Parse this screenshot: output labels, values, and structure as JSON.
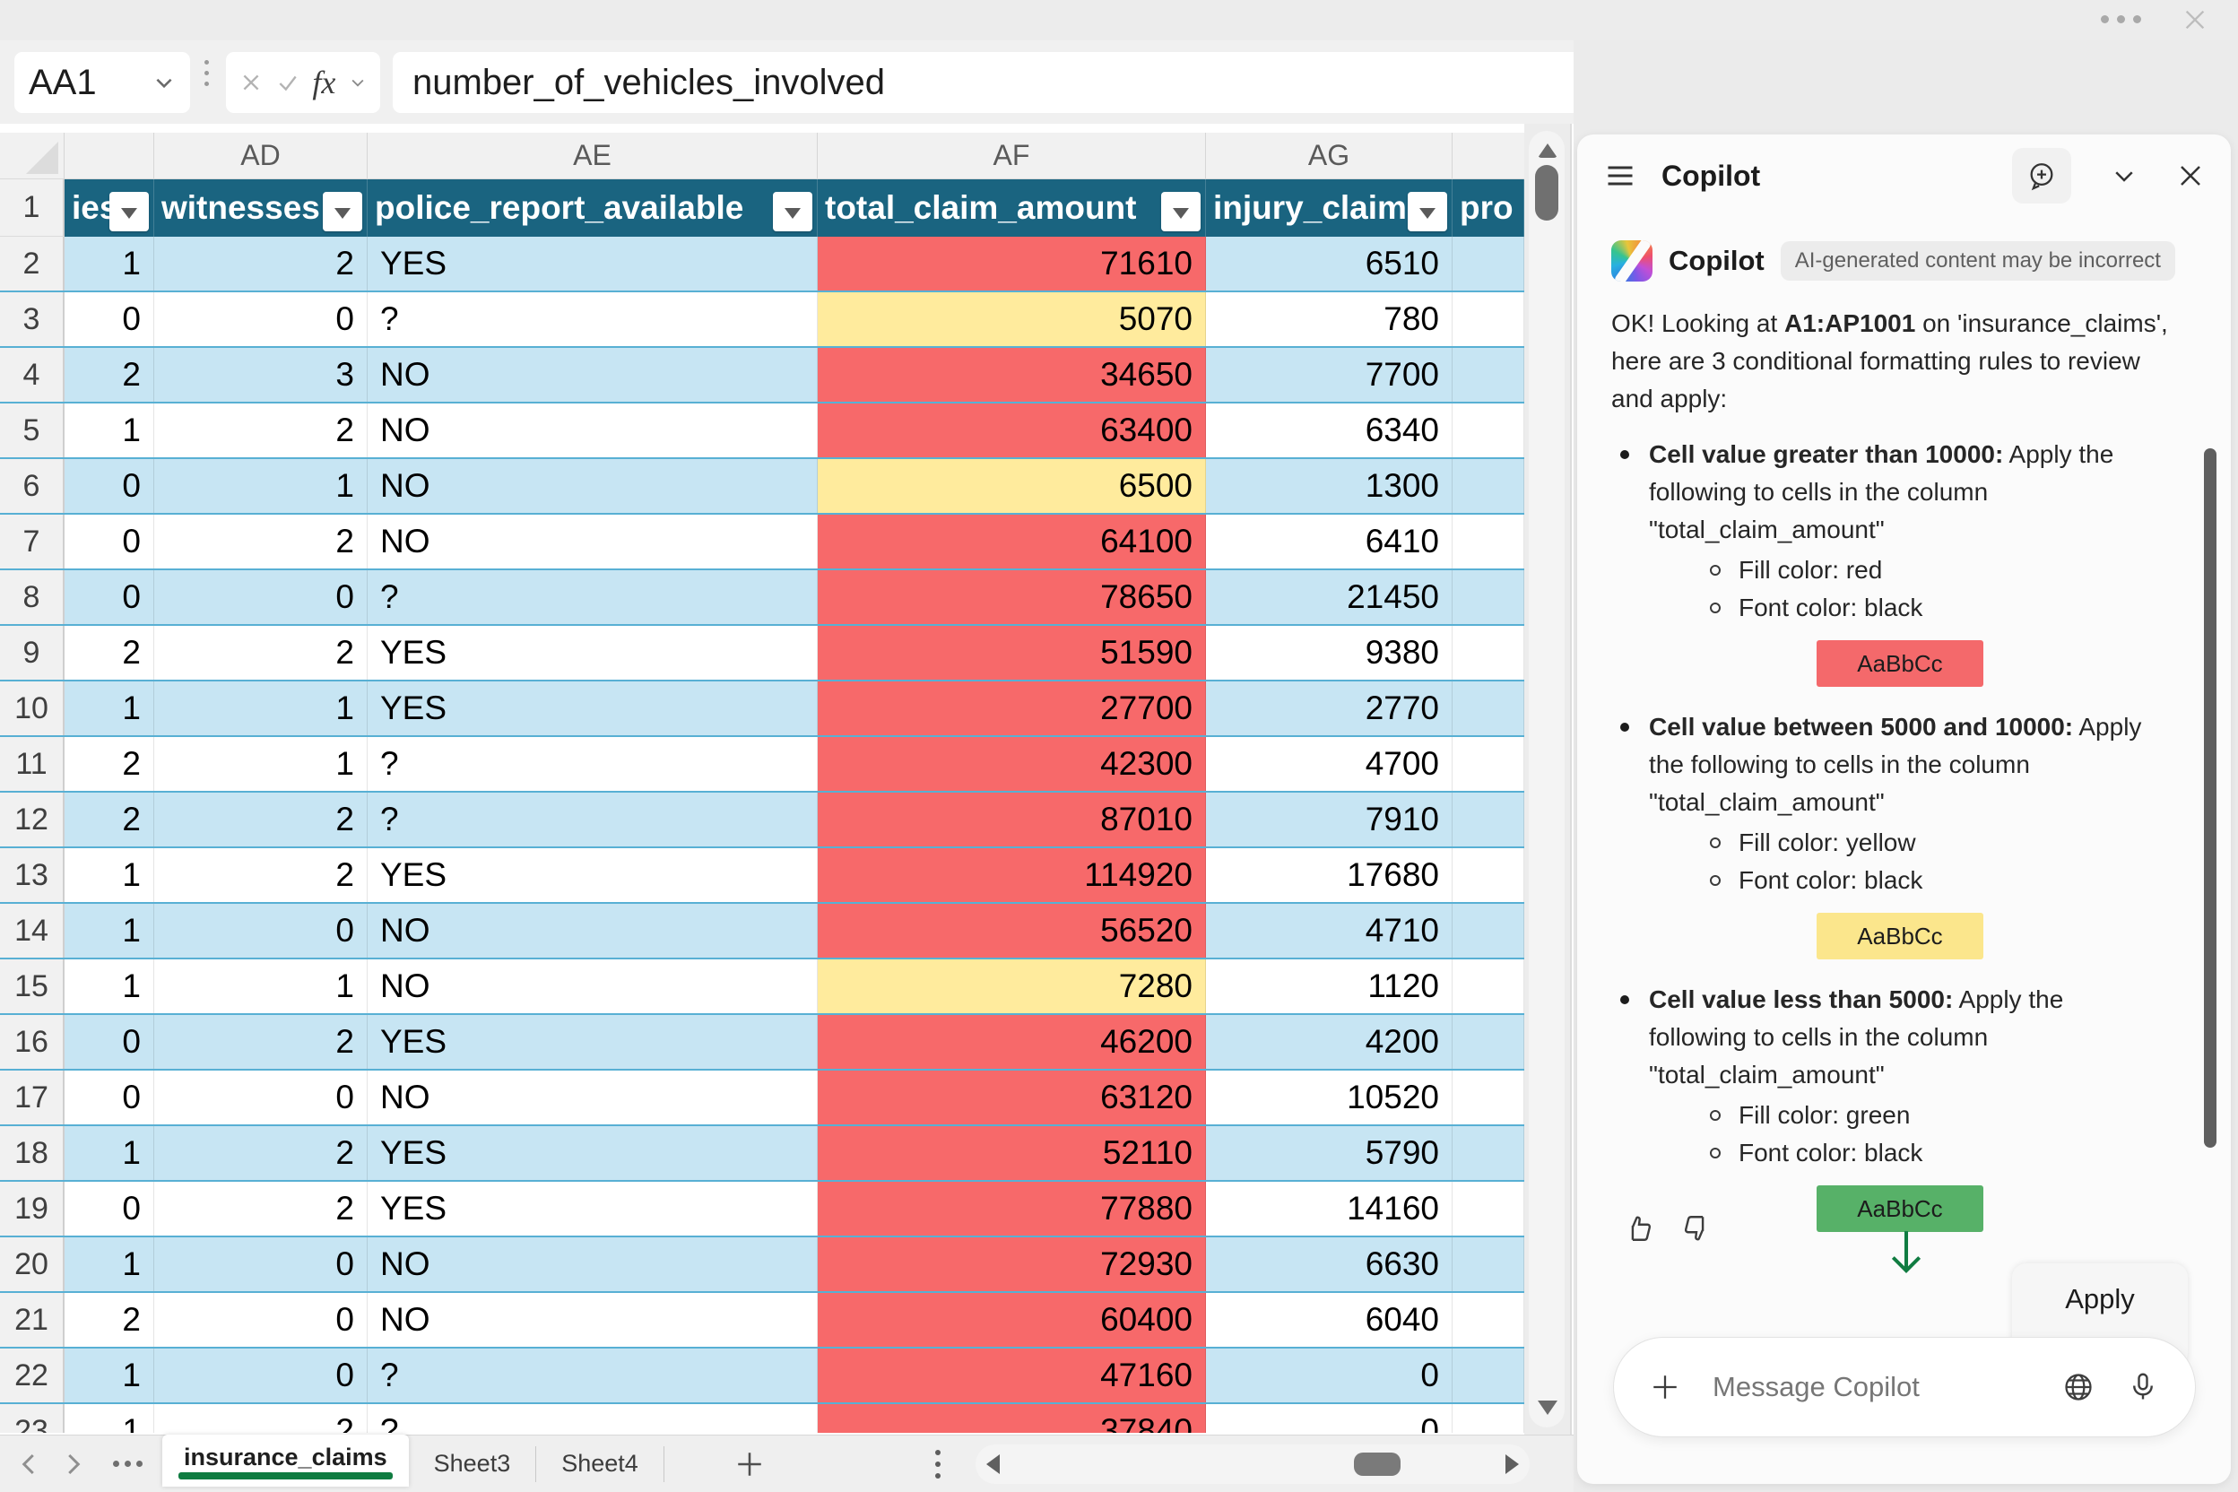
{
  "colors": {
    "header_teal": "#1a6480",
    "band_blue": "#c7e5f3",
    "row_border": "#58b0d4",
    "red": "#f7696a",
    "yellow": "#ffeb9d",
    "green": "#57b168",
    "tab_green": "#107c41"
  },
  "formula_bar": {
    "name_box_value": "AA1",
    "fx_label": "fx",
    "formula_value": "number_of_vehicles_involved"
  },
  "grid": {
    "column_letters": [
      "AD",
      "AE",
      "AF",
      "AG"
    ],
    "header_row_number": "1",
    "headers": [
      "ies",
      "witnesses",
      "police_report_available",
      "total_claim_amount",
      "injury_claim",
      "pro"
    ],
    "rows": [
      {
        "n": "2",
        "ac": "1",
        "ad": "2",
        "ae": "YES",
        "af": "71610",
        "af_fill": "red",
        "ag": "6510"
      },
      {
        "n": "3",
        "ac": "0",
        "ad": "0",
        "ae": "?",
        "af": "5070",
        "af_fill": "yellow",
        "ag": "780"
      },
      {
        "n": "4",
        "ac": "2",
        "ad": "3",
        "ae": "NO",
        "af": "34650",
        "af_fill": "red",
        "ag": "7700"
      },
      {
        "n": "5",
        "ac": "1",
        "ad": "2",
        "ae": "NO",
        "af": "63400",
        "af_fill": "red",
        "ag": "6340"
      },
      {
        "n": "6",
        "ac": "0",
        "ad": "1",
        "ae": "NO",
        "af": "6500",
        "af_fill": "yellow",
        "ag": "1300"
      },
      {
        "n": "7",
        "ac": "0",
        "ad": "2",
        "ae": "NO",
        "af": "64100",
        "af_fill": "red",
        "ag": "6410"
      },
      {
        "n": "8",
        "ac": "0",
        "ad": "0",
        "ae": "?",
        "af": "78650",
        "af_fill": "red",
        "ag": "21450"
      },
      {
        "n": "9",
        "ac": "2",
        "ad": "2",
        "ae": "YES",
        "af": "51590",
        "af_fill": "red",
        "ag": "9380"
      },
      {
        "n": "10",
        "ac": "1",
        "ad": "1",
        "ae": "YES",
        "af": "27700",
        "af_fill": "red",
        "ag": "2770"
      },
      {
        "n": "11",
        "ac": "2",
        "ad": "1",
        "ae": "?",
        "af": "42300",
        "af_fill": "red",
        "ag": "4700"
      },
      {
        "n": "12",
        "ac": "2",
        "ad": "2",
        "ae": "?",
        "af": "87010",
        "af_fill": "red",
        "ag": "7910"
      },
      {
        "n": "13",
        "ac": "1",
        "ad": "2",
        "ae": "YES",
        "af": "114920",
        "af_fill": "red",
        "ag": "17680"
      },
      {
        "n": "14",
        "ac": "1",
        "ad": "0",
        "ae": "NO",
        "af": "56520",
        "af_fill": "red",
        "ag": "4710"
      },
      {
        "n": "15",
        "ac": "1",
        "ad": "1",
        "ae": "NO",
        "af": "7280",
        "af_fill": "yellow",
        "ag": "1120"
      },
      {
        "n": "16",
        "ac": "0",
        "ad": "2",
        "ae": "YES",
        "af": "46200",
        "af_fill": "red",
        "ag": "4200"
      },
      {
        "n": "17",
        "ac": "0",
        "ad": "0",
        "ae": "NO",
        "af": "63120",
        "af_fill": "red",
        "ag": "10520"
      },
      {
        "n": "18",
        "ac": "1",
        "ad": "2",
        "ae": "YES",
        "af": "52110",
        "af_fill": "red",
        "ag": "5790"
      },
      {
        "n": "19",
        "ac": "0",
        "ad": "2",
        "ae": "YES",
        "af": "77880",
        "af_fill": "red",
        "ag": "14160"
      },
      {
        "n": "20",
        "ac": "1",
        "ad": "0",
        "ae": "NO",
        "af": "72930",
        "af_fill": "red",
        "ag": "6630"
      },
      {
        "n": "21",
        "ac": "2",
        "ad": "0",
        "ae": "NO",
        "af": "60400",
        "af_fill": "red",
        "ag": "6040"
      },
      {
        "n": "22",
        "ac": "1",
        "ad": "0",
        "ae": "?",
        "af": "47160",
        "af_fill": "red",
        "ag": "0"
      },
      {
        "n": "23",
        "ac": "1",
        "ad": "2",
        "ae": "?",
        "af": "37840",
        "af_fill": "red",
        "ag": "0"
      }
    ]
  },
  "sheet_tabs": {
    "active": "insurance_claims",
    "others": [
      "Sheet3",
      "Sheet4"
    ]
  },
  "copilot": {
    "title": "Copilot",
    "sender": "Copilot",
    "badge": "AI-generated content may be incorrect",
    "intro_pre": "OK! Looking at ",
    "intro_range": "A1:AP1001",
    "intro_post": " on 'insurance_claims', here are 3 conditional formatting rules to review and apply:",
    "rules": [
      {
        "title": "Cell value greater than 10000:",
        "desc": " Apply the following to cells in the column \"total_claim_amount\"",
        "fill_line": "Fill color: red",
        "font_line": "Font color: black",
        "swatch_text": "AaBbCc",
        "swatch_color": "#f4696b"
      },
      {
        "title": "Cell value between 5000 and 10000:",
        "desc": " Apply the following to cells in the column \"total_claim_amount\"",
        "fill_line": "Fill color: yellow",
        "font_line": "Font color: black",
        "swatch_text": "AaBbCc",
        "swatch_color": "#fbe68c"
      },
      {
        "title": "Cell value less than 5000:",
        "desc": " Apply the following to cells in the column \"total_claim_amount\"",
        "fill_line": "Fill color: green",
        "font_line": "Font color: black",
        "swatch_text": "AaBbCc",
        "swatch_color": "#57b168"
      }
    ],
    "apply_label": "Apply",
    "input_placeholder": "Message Copilot"
  }
}
